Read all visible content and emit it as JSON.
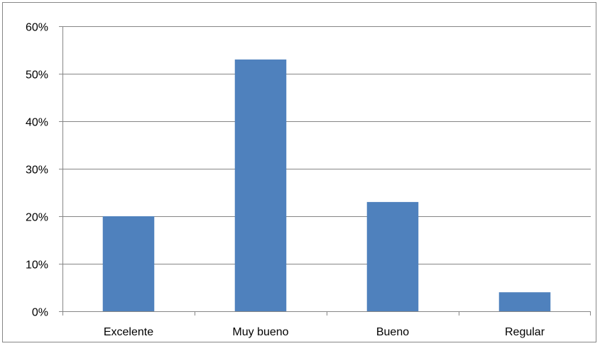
{
  "chart_data": {
    "type": "bar",
    "title": "",
    "xlabel": "",
    "ylabel": "",
    "categories": [
      "Excelente",
      "Muy bueno",
      "Bueno",
      "Regular"
    ],
    "values": [
      20,
      53,
      23,
      4
    ],
    "ylim": [
      0,
      60
    ],
    "yticks": [
      0,
      10,
      20,
      30,
      40,
      50,
      60
    ],
    "ytick_labels": [
      "0%",
      "10%",
      "20%",
      "30%",
      "40%",
      "50%",
      "60%"
    ],
    "grid": true,
    "legend": "none",
    "bar_color": "#4F81BD",
    "grid_color": "#868686"
  }
}
